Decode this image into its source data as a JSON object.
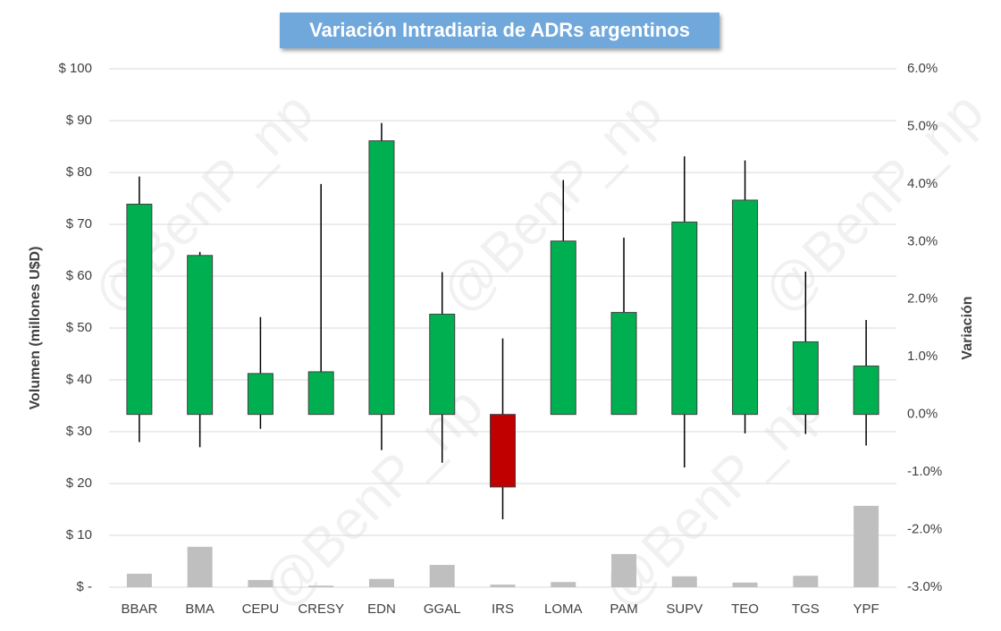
{
  "chart_data": {
    "type": "candlestick",
    "title": "Variación Intradiaria de ADRs argentinos",
    "ylabel": "Volumen (millones U$D)",
    "y2label": "Variación",
    "watermark": "@BenP_np",
    "categories": [
      "BBAR",
      "BMA",
      "CEPU",
      "CRESY",
      "EDN",
      "GGAL",
      "IRS",
      "LOMA",
      "PAM",
      "SUPV",
      "TEO",
      "TGS",
      "YPF"
    ],
    "ylim": [
      0,
      100
    ],
    "yticks": [
      {
        "value": 0,
        "label": "$ -"
      },
      {
        "value": 10,
        "label": "$ 10"
      },
      {
        "value": 20,
        "label": "$ 20"
      },
      {
        "value": 30,
        "label": "$ 30"
      },
      {
        "value": 40,
        "label": "$ 40"
      },
      {
        "value": 50,
        "label": "$ 50"
      },
      {
        "value": 60,
        "label": "$ 60"
      },
      {
        "value": 70,
        "label": "$ 70"
      },
      {
        "value": 80,
        "label": "$ 80"
      },
      {
        "value": 90,
        "label": "$ 90"
      },
      {
        "value": 100,
        "label": "$ 100"
      }
    ],
    "y2lim": [
      -3,
      6
    ],
    "y2ticks": [
      {
        "value": -3,
        "label": "-3.0%"
      },
      {
        "value": -2,
        "label": "-2.0%"
      },
      {
        "value": -1,
        "label": "-1.0%"
      },
      {
        "value": 0,
        "label": "0.0%"
      },
      {
        "value": 1,
        "label": "1.0%"
      },
      {
        "value": 2,
        "label": "2.0%"
      },
      {
        "value": 3,
        "label": "3.0%"
      },
      {
        "value": 4,
        "label": "4.0%"
      },
      {
        "value": 5,
        "label": "5.0%"
      },
      {
        "value": 6,
        "label": "6.0%"
      }
    ],
    "grid": true,
    "volume": {
      "color": "#bfbfbf",
      "values": [
        2.6,
        7.8,
        1.4,
        0.3,
        1.6,
        4.3,
        0.5,
        1.0,
        6.4,
        2.1,
        0.9,
        2.2,
        15.7
      ]
    },
    "candles": {
      "axis": "y2",
      "up_color": "#00b050",
      "down_color": "#c00000",
      "open": [
        0,
        0,
        0,
        0,
        0,
        0,
        0,
        0,
        0,
        0,
        0,
        0,
        0
      ],
      "high": [
        4.13,
        2.82,
        1.69,
        4.0,
        5.06,
        2.47,
        1.32,
        4.07,
        3.07,
        4.48,
        4.41,
        2.48,
        1.64
      ],
      "low": [
        -0.48,
        -0.57,
        -0.25,
        0,
        -0.62,
        -0.84,
        -1.82,
        0,
        0,
        -0.92,
        -0.33,
        -0.34,
        -0.54
      ],
      "close": [
        3.65,
        2.76,
        0.71,
        0.74,
        4.75,
        1.74,
        -1.26,
        3.01,
        1.77,
        3.34,
        3.72,
        1.26,
        0.84
      ]
    }
  }
}
